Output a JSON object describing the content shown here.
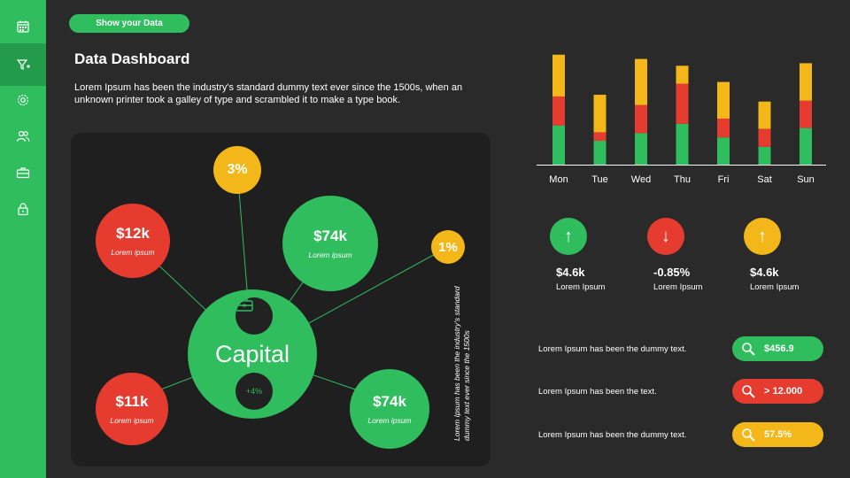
{
  "sidebar": {
    "items": [
      {
        "icon": "calendar-icon"
      },
      {
        "icon": "filter-plus-icon",
        "active": true
      },
      {
        "icon": "gear-icon"
      },
      {
        "icon": "users-icon"
      },
      {
        "icon": "briefcase-icon"
      },
      {
        "icon": "lock-icon"
      }
    ]
  },
  "header": {
    "button_label": "Show your Data",
    "title": "Data Dashboard",
    "description": "Lorem Ipsum has been the industry's standard dummy text ever since the 1500s, when an unknown printer took a galley of type and scrambled it to make a type book."
  },
  "network": {
    "center": {
      "label": "Capital",
      "top_icon": "briefcase-icon",
      "bottom_badge": "+4%"
    },
    "nodes": [
      {
        "value": "$12k",
        "label": "Lorem ipsum",
        "color": "#e63c2f"
      },
      {
        "value": "3%",
        "color": "#f3b71a"
      },
      {
        "value": "$74k",
        "label": "Lorem ipsum",
        "color": "#2fbd5e"
      },
      {
        "value": "1%",
        "color": "#f3b71a"
      },
      {
        "value": "$11k",
        "label": "Lorem ipsum",
        "color": "#e63c2f"
      },
      {
        "value": "$74k",
        "label": "Lorem ipsum",
        "color": "#2fbd5e"
      }
    ],
    "vertical_text": "Lorem Ipsum has been the industry's standard dummy text ever since the 1500s"
  },
  "chart_data": {
    "type": "bar",
    "stacked": true,
    "categories": [
      "Mon",
      "Tue",
      "Wed",
      "Thu",
      "Fri",
      "Sat",
      "Sun"
    ],
    "series": [
      {
        "color": "#2fbd5e",
        "values": [
          46,
          28,
          37,
          48,
          32,
          21,
          43
        ]
      },
      {
        "color": "#e63c2f",
        "values": [
          34,
          10,
          33,
          47,
          22,
          21,
          32
        ]
      },
      {
        "color": "#f3b71a",
        "values": [
          49,
          44,
          54,
          21,
          43,
          32,
          44
        ]
      }
    ],
    "ylim": [
      0,
      135
    ],
    "grid": false,
    "legend": "none"
  },
  "indicators": [
    {
      "arrow": "↑",
      "arrow_icon": "arrow-up-icon",
      "value": "$4.6k",
      "label": "Lorem Ipsum",
      "color": "#2fbd5e"
    },
    {
      "arrow": "↓",
      "arrow_icon": "arrow-down-icon",
      "value": "-0.85%",
      "label": "Lorem Ipsum",
      "color": "#e63c2f"
    },
    {
      "arrow": "↑",
      "arrow_icon": "arrow-up-icon",
      "value": "$4.6k",
      "label": "Lorem Ipsum",
      "color": "#f3b71a"
    }
  ],
  "rows": [
    {
      "text": "Lorem Ipsum has been the dummy text.",
      "value": "$456.9",
      "icon": "search-icon",
      "color": "#2fbd5e"
    },
    {
      "text": "Lorem Ipsum has been the text.",
      "value": "> 12.000",
      "icon": "search-icon",
      "color": "#e63c2f"
    },
    {
      "text": "Lorem Ipsum has been the dummy text.",
      "value": "57.5%",
      "icon": "search-icon",
      "color": "#f3b71a"
    }
  ]
}
